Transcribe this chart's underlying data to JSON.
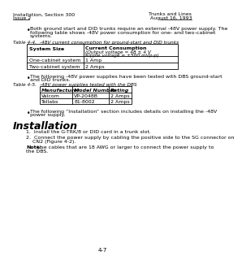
{
  "bg_color": "#ffffff",
  "header_left_line1": "Installation, Section 300",
  "header_left_line2": "Issue 2",
  "header_right_line1": "Trunks and Lines",
  "header_right_line2": "August 16, 1993",
  "bullet1_line1": "Both ground start and DID trunks require an external -48V power supply. The",
  "bullet1_line2": "following table shows -48V power consumption for one- and two-cabinet",
  "bullet1_line3": "systems.",
  "table1_caption": "Table 4-4.  -48V current consumption for ground-start and DID trunks",
  "table1_col1_header": "System Size",
  "table1_col2_line1": "Current Consumption",
  "table1_col2_line2": "(Output voltage = 48 ± 4 V",
  "table1_col2_line3": "Ripple voltage = ±500 mVp-p)",
  "table1_rows": [
    [
      "One-cabinet system",
      "1 Amp"
    ],
    [
      "Two-cabinet system",
      "2 Amps"
    ]
  ],
  "bullet2_line1": "The following -48V power supplies have been tested with DBS ground-start",
  "bullet2_line2": "and DID trunks.",
  "table2_caption": "Table 4-5.  -48V power supplies tested with the DBS",
  "table2_col_headers": [
    "Manufacturer",
    "Model Number",
    "Rating"
  ],
  "table2_rows": [
    [
      "Valcom",
      "VP-2048B",
      "2 Amps"
    ],
    [
      "Tellabs",
      "81-8002",
      "2 Amps"
    ]
  ],
  "bullet3_line1": "The following “Installation” section includes details on installing the -48V",
  "bullet3_line2": "power supply.",
  "section_title": "Installation",
  "step1": "1.  Install the G-TRK/8 or DID card in a trunk slot.",
  "step2_line1": "2.  Connect the power supply by cabling the positive side to the SG connector on",
  "step2_line2": "CN2 (Figure 4-2).",
  "note_label": "Note:",
  "note_line1": " Use cables that are 18 AWG or larger to connect the power supply to",
  "note_line2": "the DBS.",
  "footer": "4-7"
}
